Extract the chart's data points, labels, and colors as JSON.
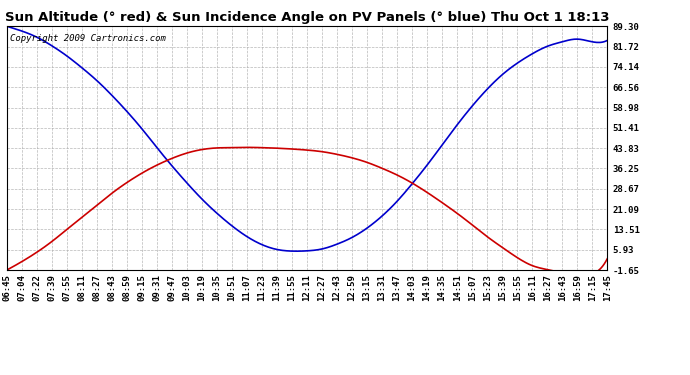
{
  "title": "Sun Altitude (° red) & Sun Incidence Angle on PV Panels (° blue) Thu Oct 1 18:13",
  "copyright_text": "Copyright 2009 Cartronics.com",
  "yticks": [
    -1.65,
    5.93,
    13.51,
    21.09,
    28.67,
    36.25,
    43.83,
    51.41,
    58.98,
    66.56,
    74.14,
    81.72,
    89.3
  ],
  "ylim": [
    -1.65,
    89.3
  ],
  "time_labels": [
    "06:45",
    "07:04",
    "07:22",
    "07:39",
    "07:55",
    "08:11",
    "08:27",
    "08:43",
    "08:59",
    "09:15",
    "09:31",
    "09:47",
    "10:03",
    "10:19",
    "10:35",
    "10:51",
    "11:07",
    "11:23",
    "11:39",
    "11:55",
    "12:11",
    "12:27",
    "12:43",
    "12:59",
    "13:15",
    "13:31",
    "13:47",
    "14:03",
    "14:19",
    "14:35",
    "14:51",
    "15:07",
    "15:23",
    "15:39",
    "15:55",
    "16:11",
    "16:27",
    "16:43",
    "16:59",
    "17:15",
    "17:45"
  ],
  "blue_y": [
    89.3,
    87.5,
    85.2,
    82.0,
    78.2,
    73.8,
    69.0,
    63.5,
    57.5,
    51.0,
    44.0,
    37.2,
    30.8,
    24.8,
    19.5,
    14.8,
    10.8,
    7.8,
    6.0,
    5.4,
    5.5,
    6.2,
    8.0,
    10.5,
    14.0,
    18.5,
    24.0,
    30.5,
    37.5,
    45.0,
    52.5,
    59.5,
    65.8,
    71.2,
    75.5,
    79.0,
    81.8,
    83.5,
    84.5,
    83.5,
    84.0
  ],
  "red_y": [
    -1.65,
    1.5,
    5.0,
    9.0,
    13.5,
    18.0,
    22.5,
    27.0,
    31.0,
    34.5,
    37.5,
    40.0,
    42.0,
    43.3,
    43.9,
    44.0,
    44.1,
    44.0,
    43.8,
    43.5,
    43.1,
    42.5,
    41.5,
    40.2,
    38.5,
    36.3,
    33.8,
    30.8,
    27.3,
    23.5,
    19.5,
    15.2,
    10.8,
    6.8,
    3.0,
    0.0,
    -1.5,
    -2.5,
    -2.8,
    -3.0,
    2.5
  ],
  "blue_color": "#0000cc",
  "red_color": "#cc0000",
  "bg_color": "#ffffff",
  "plot_bg_color": "#ffffff",
  "grid_color": "#b0b0b0",
  "title_fontsize": 9.5,
  "tick_fontsize": 6.5,
  "copyright_fontsize": 6.5
}
